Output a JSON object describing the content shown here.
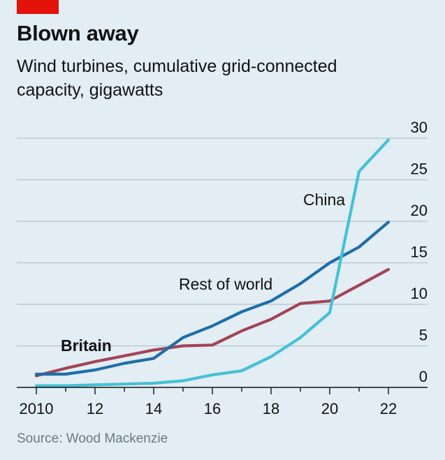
{
  "header": {
    "title": "Blown away",
    "subtitle": "Wind turbines, cumulative grid-connected capacity, gigawatts"
  },
  "footer": {
    "source": "Source: Wood Mackenzie"
  },
  "colors": {
    "accent": "#e3120b",
    "background": "#e3edf4",
    "grid": "#b5c3cc",
    "britain": "#a34457",
    "rest_of_world": "#1f6ea7",
    "china": "#45c1d6"
  },
  "chart_data": {
    "type": "line",
    "title": "Blown away",
    "subtitle": "Wind turbines, cumulative grid-connected capacity, gigawatts",
    "xlabel": "",
    "ylabel": "",
    "x": [
      2010,
      2011,
      2012,
      2013,
      2014,
      2015,
      2016,
      2017,
      2018,
      2019,
      2020,
      2021,
      2022
    ],
    "x_tick_labels": [
      "2010",
      "12",
      "14",
      "16",
      "18",
      "20",
      "22"
    ],
    "x_tick_values": [
      2010,
      2012,
      2014,
      2016,
      2018,
      2020,
      2022
    ],
    "y_ticks": [
      0,
      5,
      10,
      15,
      20,
      25,
      30
    ],
    "ylim": [
      0,
      30
    ],
    "grid": true,
    "y_axis_side": "right",
    "legend": "direct labels",
    "series": [
      {
        "name": "Britain",
        "key": "britain",
        "label_bold": true,
        "values": [
          1.4,
          2.3,
          3.1,
          3.8,
          4.5,
          5.0,
          5.1,
          6.8,
          8.2,
          10.1,
          10.4,
          12.3,
          14.2
        ]
      },
      {
        "name": "Rest of world",
        "key": "rest_of_world",
        "label_bold": false,
        "values": [
          1.6,
          1.6,
          2.1,
          2.9,
          3.5,
          6.0,
          7.4,
          9.1,
          10.4,
          12.5,
          15.0,
          16.9,
          19.9
        ]
      },
      {
        "name": "China",
        "key": "china",
        "label_bold": false,
        "values": [
          0.2,
          0.2,
          0.3,
          0.4,
          0.5,
          0.8,
          1.5,
          2.0,
          3.7,
          6.0,
          9.0,
          26.0,
          29.8
        ]
      }
    ]
  }
}
